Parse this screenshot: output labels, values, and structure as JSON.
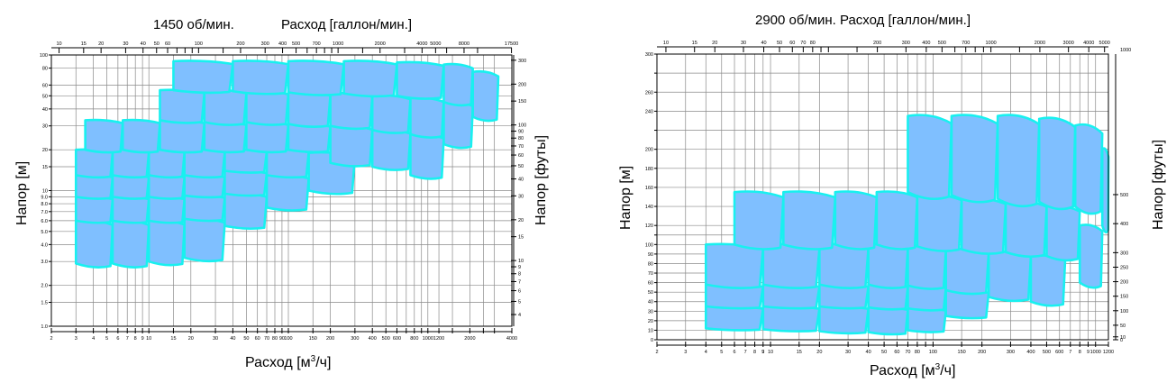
{
  "colors": {
    "tile_fill": "#7fbfff",
    "tile_stroke": "#19f0ef",
    "grid": "#8a8a8a"
  },
  "chart_data": [
    {
      "type": "area",
      "title": "1450 об/мин.",
      "top_axis_title": "Расход [галлон/мин.]",
      "xlabel": "Расход [м",
      "xlabel_sup": "3",
      "xlabel_tail": "/ч]",
      "ylabel_left": "Напор [м]",
      "ylabel_right": "Напор [футы]",
      "x_scale": "log",
      "xlim": [
        2,
        4000
      ],
      "y_scale": "log",
      "ylim": [
        1,
        100
      ],
      "x_ticks": [
        "2",
        "3",
        "4",
        "5",
        "6",
        "7",
        "8",
        "9",
        "10",
        "15",
        "20",
        "30",
        "40",
        "50",
        "60",
        "70",
        "80",
        "90",
        "100",
        "150",
        "200",
        "300",
        "400",
        "500",
        "600",
        "700",
        "800",
        "900",
        "1000",
        "1200",
        "1500",
        "2000",
        "2500",
        "3000",
        "4000"
      ],
      "x_tick_labels": [
        "2",
        "3",
        "4",
        "5",
        "6",
        "7",
        "8",
        "9",
        "10",
        "15",
        "20",
        "30",
        "40",
        "50",
        "60",
        "70",
        "80",
        "90",
        "100",
        "150",
        "200",
        "300",
        "400",
        "500",
        "600",
        "800",
        "1000",
        "1200",
        "2000",
        "4000"
      ],
      "top_ticks": [
        "10",
        "15",
        "20",
        "30",
        "40",
        "50",
        "60",
        "70",
        "80",
        "90",
        "100",
        "150",
        "200",
        "300",
        "400",
        "500",
        "600",
        "700",
        "800",
        "900",
        "1000",
        "1500",
        "2000",
        "3000",
        "4000",
        "5000",
        "6000",
        "8000",
        "10000",
        "17500"
      ],
      "top_tick_labels": [
        "10",
        "15",
        "20",
        "30",
        "40",
        "50",
        "60",
        "100",
        "200",
        "300",
        "400",
        "500",
        "700",
        "1000",
        "2000",
        "4000",
        "5000",
        "8000",
        "17500"
      ],
      "y_ticks": [
        "1.0",
        "1.5",
        "2.0",
        "3.0",
        "4.0",
        "5.0",
        "6.0",
        "7.0",
        "8.0",
        "9.0",
        "10",
        "15",
        "20",
        "30",
        "40",
        "50",
        "60",
        "80",
        "100"
      ],
      "y_tick_labels": [
        "1.0",
        "1.5",
        "2.0",
        "3.0",
        "4.0",
        "5.0",
        "6.0",
        "7.0",
        "8.0",
        "9.0",
        "10",
        "15",
        "20",
        "30",
        "40",
        "50",
        "60",
        "80",
        "100"
      ],
      "right_ticks": [
        "4",
        "5",
        "6",
        "7",
        "8",
        "9",
        "10",
        "15",
        "20",
        "30",
        "40",
        "50",
        "60",
        "70",
        "80",
        "90",
        "100",
        "150",
        "200",
        "300"
      ],
      "right_tick_labels": [
        "4",
        "5",
        "6",
        "7",
        "8",
        "9",
        "10",
        "15",
        "20",
        "30",
        "40",
        "50",
        "60",
        "70",
        "80",
        "90",
        "100",
        "150",
        "200",
        "300"
      ],
      "tiles": [
        {
          "q": [
            3.0,
            5.5
          ],
          "h": [
            2.9,
            6.0
          ]
        },
        {
          "q": [
            5.5,
            10
          ],
          "h": [
            2.9,
            6.0
          ]
        },
        {
          "q": [
            10,
            18
          ],
          "h": [
            3.0,
            6.0
          ]
        },
        {
          "q": [
            18,
            35
          ],
          "h": [
            3.2,
            6.2
          ]
        },
        {
          "q": [
            3.0,
            5.5
          ],
          "h": [
            6.0,
            9.0
          ]
        },
        {
          "q": [
            5.5,
            10
          ],
          "h": [
            6.0,
            9.0
          ]
        },
        {
          "q": [
            10,
            18
          ],
          "h": [
            6.0,
            9.0
          ]
        },
        {
          "q": [
            18,
            35
          ],
          "h": [
            6.2,
            9.2
          ]
        },
        {
          "q": [
            35,
            70
          ],
          "h": [
            5.5,
            9.5
          ]
        },
        {
          "q": [
            3.0,
            5.5
          ],
          "h": [
            9.0,
            13
          ]
        },
        {
          "q": [
            5.5,
            10
          ],
          "h": [
            9.0,
            13
          ]
        },
        {
          "q": [
            10,
            18
          ],
          "h": [
            9.0,
            13
          ]
        },
        {
          "q": [
            18,
            35
          ],
          "h": [
            9.2,
            13
          ]
        },
        {
          "q": [
            35,
            70
          ],
          "h": [
            9.5,
            14
          ]
        },
        {
          "q": [
            70,
            140
          ],
          "h": [
            7.5,
            13
          ]
        },
        {
          "q": [
            3.0,
            5.5
          ],
          "h": [
            13,
            20
          ]
        },
        {
          "q": [
            5.5,
            10
          ],
          "h": [
            13,
            20
          ]
        },
        {
          "q": [
            10,
            18
          ],
          "h": [
            13,
            20
          ]
        },
        {
          "q": [
            18,
            35
          ],
          "h": [
            13,
            20
          ]
        },
        {
          "q": [
            35,
            70
          ],
          "h": [
            14,
            20
          ]
        },
        {
          "q": [
            70,
            140
          ],
          "h": [
            13,
            20
          ]
        },
        {
          "q": [
            140,
            300
          ],
          "h": [
            10,
            19
          ]
        },
        {
          "q": [
            3.5,
            6.5
          ],
          "h": [
            20,
            33
          ]
        },
        {
          "q": [
            6.5,
            12
          ],
          "h": [
            20,
            33
          ]
        },
        {
          "q": [
            12,
            25
          ],
          "h": [
            20,
            33
          ]
        },
        {
          "q": [
            25,
            50
          ],
          "h": [
            20,
            32
          ]
        },
        {
          "q": [
            50,
            100
          ],
          "h": [
            20,
            32
          ]
        },
        {
          "q": [
            100,
            200
          ],
          "h": [
            20,
            31
          ]
        },
        {
          "q": [
            200,
            400
          ],
          "h": [
            16,
            30
          ]
        },
        {
          "q": [
            400,
            750
          ],
          "h": [
            15,
            28
          ]
        },
        {
          "q": [
            750,
            1300
          ],
          "h": [
            13,
            26
          ]
        },
        {
          "q": [
            12,
            25
          ],
          "h": [
            33,
            55
          ]
        },
        {
          "q": [
            25,
            50
          ],
          "h": [
            32,
            55
          ]
        },
        {
          "q": [
            50,
            100
          ],
          "h": [
            32,
            54
          ]
        },
        {
          "q": [
            100,
            200
          ],
          "h": [
            31,
            53
          ]
        },
        {
          "q": [
            200,
            400
          ],
          "h": [
            30,
            52
          ]
        },
        {
          "q": [
            400,
            750
          ],
          "h": [
            28,
            50
          ]
        },
        {
          "q": [
            750,
            1300
          ],
          "h": [
            26,
            48
          ]
        },
        {
          "q": [
            1300,
            2100
          ],
          "h": [
            22,
            45
          ]
        },
        {
          "q": [
            15,
            40
          ],
          "h": [
            55,
            90
          ]
        },
        {
          "q": [
            40,
            100
          ],
          "h": [
            54,
            90
          ]
        },
        {
          "q": [
            100,
            250
          ],
          "h": [
            53,
            90
          ]
        },
        {
          "q": [
            250,
            600
          ],
          "h": [
            52,
            90
          ]
        },
        {
          "q": [
            600,
            1300
          ],
          "h": [
            50,
            88
          ]
        },
        {
          "q": [
            1300,
            2100
          ],
          "h": [
            45,
            85
          ]
        },
        {
          "q": [
            2100,
            3200
          ],
          "h": [
            35,
            75
          ]
        }
      ]
    },
    {
      "type": "area",
      "title": "2900 об/мин. Расход [галлон/мин.]",
      "xlabel": "Расход [м",
      "xlabel_sup": "3",
      "xlabel_tail": "/ч]",
      "ylabel_left": "Напор [м]",
      "ylabel_right": "Напор [футы]",
      "x_scale": "log",
      "xlim": [
        2,
        1200
      ],
      "y_scale": "linear",
      "ylim": [
        0,
        300
      ],
      "x_ticks": [
        "2",
        "3",
        "4",
        "5",
        "6",
        "7",
        "8",
        "9",
        "10",
        "15",
        "20",
        "30",
        "40",
        "50",
        "60",
        "70",
        "80",
        "90",
        "100",
        "150",
        "200",
        "300",
        "400",
        "500",
        "600",
        "700",
        "800",
        "900",
        "1000",
        "1200"
      ],
      "x_tick_labels": [
        "2",
        "3",
        "4",
        "5",
        "6",
        "7",
        "8",
        "9",
        "10",
        "15",
        "20",
        "30",
        "40",
        "50",
        "60",
        "70",
        "80",
        "9",
        "100",
        "150",
        "200",
        "300",
        "400",
        "500",
        "600",
        "7",
        "8",
        "9",
        "1000",
        "1200"
      ],
      "top_ticks": [
        "10",
        "15",
        "20",
        "30",
        "40",
        "50",
        "60",
        "70",
        "80",
        "90",
        "100",
        "150",
        "200",
        "300",
        "400",
        "500",
        "600",
        "700",
        "800",
        "900",
        "1000",
        "1500",
        "2000",
        "3000",
        "4000",
        "5000"
      ],
      "top_tick_labels": [
        "10",
        "15",
        "20",
        "30",
        "40",
        "50",
        "60",
        "70",
        "80",
        "200",
        "300",
        "400",
        "500",
        "700",
        "1000",
        "2000",
        "3000",
        "4000",
        "5000"
      ],
      "y_ticks": [
        "0",
        "10",
        "20",
        "30",
        "40",
        "50",
        "60",
        "70",
        "80",
        "90",
        "100",
        "110",
        "120",
        "140",
        "160",
        "180",
        "200",
        "220",
        "240",
        "260",
        "280",
        "300"
      ],
      "y_tick_labels": [
        "0",
        "10",
        "20",
        "30",
        "40",
        "50",
        "60",
        "70",
        "80",
        "90",
        "100",
        "120",
        "140",
        "160",
        "180",
        "200",
        "240",
        "260",
        "300"
      ],
      "right_ticks": [
        "0",
        "10",
        "50",
        "100",
        "150",
        "200",
        "250",
        "300",
        "400",
        "500",
        "1000"
      ],
      "right_tick_labels": [
        "0",
        "10",
        "50",
        "100",
        "150",
        "200",
        "250",
        "300",
        "400",
        "500",
        "1000"
      ],
      "tiles": [
        {
          "q": [
            4.0,
            9.0
          ],
          "h": [
            12,
            35
          ]
        },
        {
          "q": [
            9.0,
            20
          ],
          "h": [
            11,
            35
          ]
        },
        {
          "q": [
            20,
            40
          ],
          "h": [
            9,
            35
          ]
        },
        {
          "q": [
            40,
            70
          ],
          "h": [
            8,
            34
          ]
        },
        {
          "q": [
            70,
            120
          ],
          "h": [
            10,
            33
          ]
        },
        {
          "q": [
            4.0,
            9.0
          ],
          "h": [
            35,
            58
          ]
        },
        {
          "q": [
            9.0,
            20
          ],
          "h": [
            35,
            58
          ]
        },
        {
          "q": [
            20,
            40
          ],
          "h": [
            35,
            58
          ]
        },
        {
          "q": [
            40,
            70
          ],
          "h": [
            34,
            58
          ]
        },
        {
          "q": [
            70,
            120
          ],
          "h": [
            33,
            57
          ]
        },
        {
          "q": [
            120,
            220
          ],
          "h": [
            25,
            52
          ]
        },
        {
          "q": [
            4.0,
            9.0
          ],
          "h": [
            58,
            100
          ]
        },
        {
          "q": [
            9.0,
            20
          ],
          "h": [
            58,
            100
          ]
        },
        {
          "q": [
            20,
            40
          ],
          "h": [
            58,
            100
          ]
        },
        {
          "q": [
            40,
            70
          ],
          "h": [
            58,
            100
          ]
        },
        {
          "q": [
            70,
            120
          ],
          "h": [
            57,
            98
          ]
        },
        {
          "q": [
            120,
            220
          ],
          "h": [
            52,
            95
          ]
        },
        {
          "q": [
            220,
            400
          ],
          "h": [
            45,
            92
          ]
        },
        {
          "q": [
            400,
            650
          ],
          "h": [
            40,
            88
          ]
        },
        {
          "q": [
            6.0,
            12
          ],
          "h": [
            100,
            155
          ]
        },
        {
          "q": [
            12,
            25
          ],
          "h": [
            100,
            155
          ]
        },
        {
          "q": [
            25,
            45
          ],
          "h": [
            100,
            155
          ]
        },
        {
          "q": [
            45,
            80
          ],
          "h": [
            100,
            155
          ]
        },
        {
          "q": [
            80,
            150
          ],
          "h": [
            98,
            152
          ]
        },
        {
          "q": [
            150,
            280
          ],
          "h": [
            95,
            148
          ]
        },
        {
          "q": [
            280,
            500
          ],
          "h": [
            92,
            145
          ]
        },
        {
          "q": [
            500,
            800
          ],
          "h": [
            88,
            140
          ]
        },
        {
          "q": [
            800,
            1100
          ],
          "h": [
            60,
            120
          ]
        },
        {
          "q": [
            70,
            130
          ],
          "h": [
            155,
            235
          ]
        },
        {
          "q": [
            130,
            250
          ],
          "h": [
            152,
            235
          ]
        },
        {
          "q": [
            250,
            450
          ],
          "h": [
            148,
            235
          ]
        },
        {
          "q": [
            450,
            750
          ],
          "h": [
            145,
            232
          ]
        },
        {
          "q": [
            750,
            1100
          ],
          "h": [
            140,
            225
          ]
        },
        {
          "q": [
            1100,
            1200
          ],
          "h": [
            120,
            200
          ]
        }
      ]
    }
  ]
}
